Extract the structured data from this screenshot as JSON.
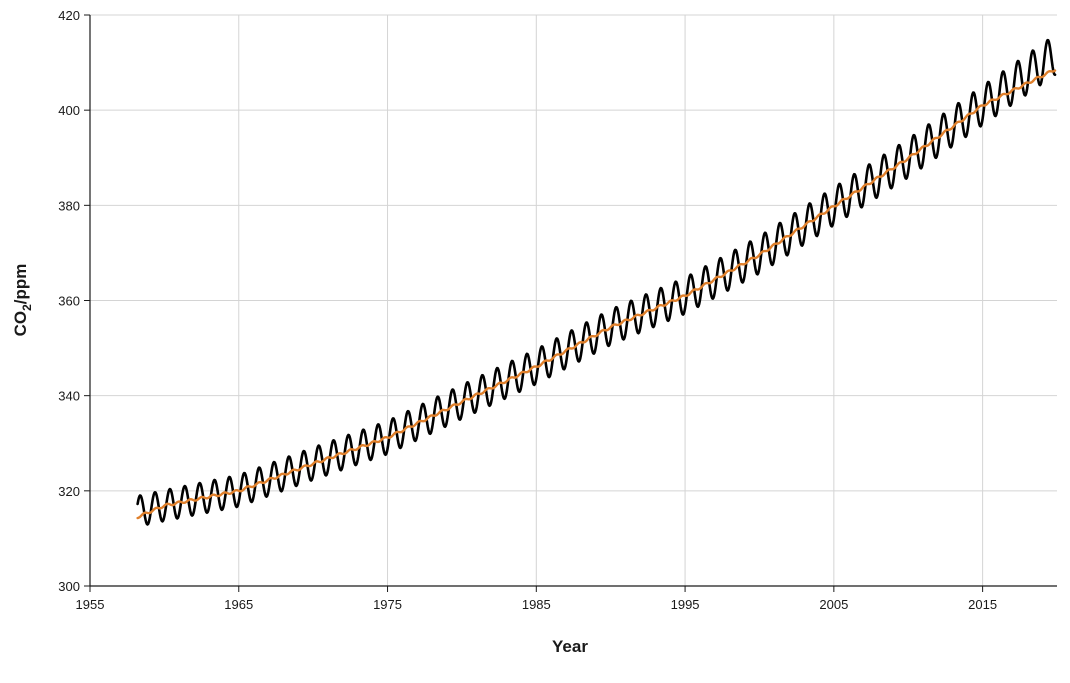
{
  "chart_data": {
    "type": "line",
    "title": "",
    "xlabel": "Year",
    "ylabel": {
      "main": "CO",
      "subscript": "2",
      "suffix": "/ppm"
    },
    "xlim": [
      1955,
      2020
    ],
    "ylim": [
      300,
      420
    ],
    "grid": true,
    "legend": "none",
    "x_ticks": [
      1955,
      1965,
      1975,
      1985,
      1995,
      2005,
      2015
    ],
    "y_ticks": [
      300,
      320,
      340,
      360,
      380,
      400,
      420
    ],
    "seasonal_amplitude": 3.2,
    "series": [
      {
        "color": "#000000",
        "style": "monthly (seasonal)",
        "x": [
          1958.2,
          1960,
          1965,
          1970,
          1975,
          1980,
          1985,
          1990,
          1995,
          2000,
          2005,
          2010,
          2015,
          2019.9
        ],
        "y": [
          315.7,
          316.9,
          320.0,
          325.7,
          331.2,
          338.7,
          346.1,
          354.4,
          361.0,
          369.6,
          379.8,
          389.9,
          401.0,
          411.7
        ]
      },
      {
        "color": "#e0802c",
        "style": "seasonally adjusted trend",
        "x": [
          1958.2,
          1960,
          1965,
          1970,
          1975,
          1980,
          1985,
          1990,
          1995,
          2000,
          2005,
          2010,
          2015,
          2019.9
        ],
        "y": [
          314.5,
          316.9,
          320.0,
          325.7,
          331.2,
          338.7,
          346.1,
          354.4,
          361.0,
          369.6,
          379.8,
          389.9,
          401.0,
          408.6
        ]
      }
    ]
  }
}
